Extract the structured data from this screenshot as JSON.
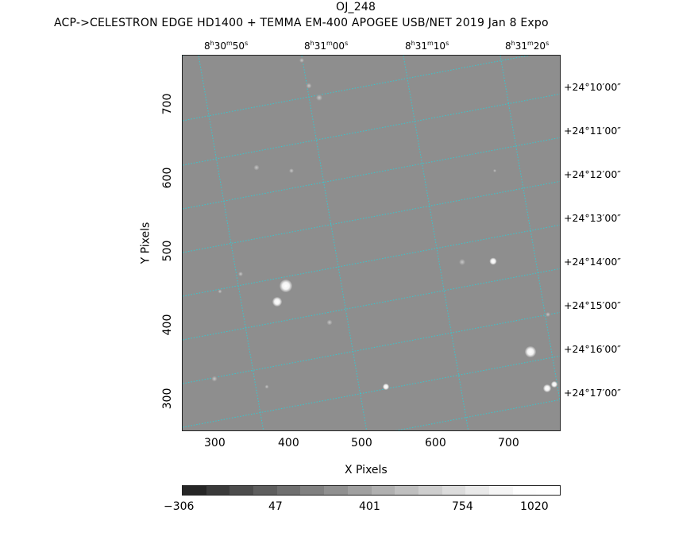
{
  "title": {
    "object": "OJ_248",
    "subtitle": "ACP->CELESTRON EDGE HD1400 + TEMMA EM-400 APOGEE USB/NET   2019 Jan  8    Expo"
  },
  "axes": {
    "x_title": "X Pixels",
    "y_title": "Y Pixels",
    "x_ticks": [
      "300",
      "400",
      "500",
      "600",
      "700"
    ],
    "y_ticks": [
      "300",
      "400",
      "500",
      "600",
      "700"
    ],
    "ra_ticks": [
      {
        "h": "8",
        "m": "30",
        "s": "50"
      },
      {
        "h": "8",
        "m": "31",
        "s": "00"
      },
      {
        "h": "8",
        "m": "31",
        "s": "10"
      },
      {
        "h": "8",
        "m": "31",
        "s": "20"
      }
    ],
    "dec_ticks": [
      "+24°10′00″",
      "+24°11′00″",
      "+24°12′00″",
      "+24°13′00″",
      "+24°14′00″",
      "+24°15′00″",
      "+24°16′00″",
      "+24°17′00″"
    ]
  },
  "colorbar": {
    "labels": [
      "−306",
      "47",
      "401",
      "754",
      "1020"
    ],
    "colors": [
      "#262626",
      "#3a3a3a",
      "#4c4c4c",
      "#5e5e5e",
      "#6f6f6f",
      "#808080",
      "#909090",
      "#a0a0a0",
      "#b0b0b0",
      "#bfbfbf",
      "#cecece",
      "#dcdcdc",
      "#e9e9e9",
      "#f5f5f5",
      "#fefefe",
      "#ffffff"
    ]
  },
  "image": {
    "background": "#8e8e8e",
    "grid_color": "#35c8d0"
  }
}
